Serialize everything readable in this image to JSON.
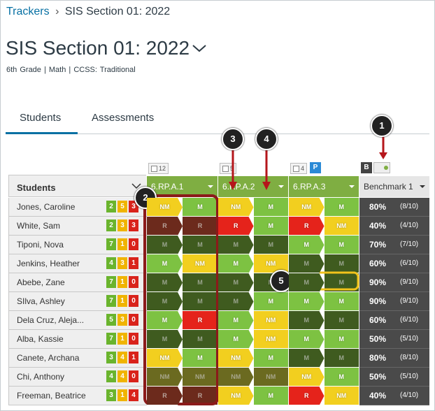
{
  "breadcrumb": [
    "Trackers",
    "SIS Section 01: 2022"
  ],
  "title": "SIS Section 01: 2022",
  "subtitle": "6th Grade | Math | CCSS: Traditional",
  "tabs": [
    "Students",
    "Assessments"
  ],
  "callouts": [
    "1",
    "2",
    "3",
    "4",
    "5"
  ],
  "table": {
    "students_header": "Students",
    "standards": [
      {
        "count": "12",
        "label": "6.RP.A.1"
      },
      {
        "count": "5",
        "label": "6.RP.A.2"
      },
      {
        "count": "4",
        "badge": "P",
        "label": "6.RP.A.3"
      }
    ],
    "benchmark": {
      "badge": "B",
      "label": "Benchmark 1"
    },
    "rows": [
      {
        "name": "Jones, Caroline",
        "counts": [
          2,
          5,
          3
        ],
        "cells": [
          [
            {
              "text": "NM",
              "shade": "bright"
            },
            {
              "text": "M",
              "shade": "bright"
            }
          ],
          [
            {
              "text": "NM",
              "shade": "bright"
            },
            {
              "text": "M",
              "shade": "bright"
            }
          ],
          [
            {
              "text": "NM",
              "shade": "bright"
            },
            {
              "text": "M",
              "shade": "bright"
            }
          ]
        ],
        "percent": "80%",
        "score": "(8/10)"
      },
      {
        "name": "White, Sam",
        "counts": [
          2,
          3,
          3
        ],
        "cells": [
          [
            {
              "text": "R",
              "shade": "dim"
            },
            {
              "text": "R",
              "shade": "dim"
            }
          ],
          [
            {
              "text": "R",
              "shade": "bright"
            },
            {
              "text": "M",
              "shade": "bright"
            }
          ],
          [
            {
              "text": "R",
              "shade": "bright"
            },
            {
              "text": "NM",
              "shade": "bright"
            }
          ]
        ],
        "percent": "40%",
        "score": "(4/10)"
      },
      {
        "name": "Tiponi, Nova",
        "counts": [
          7,
          1,
          0
        ],
        "cells": [
          [
            {
              "text": "M",
              "shade": "dim"
            },
            {
              "text": "M",
              "shade": "dim"
            }
          ],
          [
            {
              "text": "M",
              "shade": "dim"
            },
            {
              "text": "M",
              "shade": "dim"
            }
          ],
          [
            {
              "text": "M",
              "shade": "bright"
            },
            {
              "text": "M",
              "shade": "bright"
            }
          ]
        ],
        "percent": "70%",
        "score": "(7/10)"
      },
      {
        "name": "Jenkins, Heather",
        "counts": [
          4,
          3,
          1
        ],
        "cells": [
          [
            {
              "text": "M",
              "shade": "bright"
            },
            {
              "text": "NM",
              "shade": "bright"
            }
          ],
          [
            {
              "text": "M",
              "shade": "bright"
            },
            {
              "text": "NM",
              "shade": "bright"
            }
          ],
          [
            {
              "text": "M",
              "shade": "dim"
            },
            {
              "text": "M",
              "shade": "dim"
            }
          ]
        ],
        "percent": "60%",
        "score": "(6/10)"
      },
      {
        "name": "Abebe, Zane",
        "counts": [
          7,
          1,
          0
        ],
        "cells": [
          [
            {
              "text": "M",
              "shade": "dim"
            },
            {
              "text": "M",
              "shade": "dim"
            }
          ],
          [
            {
              "text": "M",
              "shade": "dim"
            },
            {
              "text": "M",
              "shade": "dim"
            }
          ],
          [
            {
              "text": "M",
              "shade": "dim"
            },
            {
              "text": "M",
              "shade": "dim"
            }
          ]
        ],
        "percent": "90%",
        "score": "(9/10)"
      },
      {
        "name": "SIlva, Ashley",
        "counts": [
          7,
          1,
          0
        ],
        "cells": [
          [
            {
              "text": "M",
              "shade": "dim"
            },
            {
              "text": "M",
              "shade": "dim"
            }
          ],
          [
            {
              "text": "M",
              "shade": "dim"
            },
            {
              "text": "M",
              "shade": "bright"
            }
          ],
          [
            {
              "text": "M",
              "shade": "bright"
            },
            {
              "text": "M",
              "shade": "bright"
            }
          ]
        ],
        "percent": "90%",
        "score": "(9/10)"
      },
      {
        "name": "Dela Cruz, Aleja...",
        "counts": [
          5,
          3,
          0
        ],
        "cells": [
          [
            {
              "text": "M",
              "shade": "bright"
            },
            {
              "text": "R",
              "shade": "bright"
            }
          ],
          [
            {
              "text": "M",
              "shade": "bright"
            },
            {
              "text": "NM",
              "shade": "bright"
            }
          ],
          [
            {
              "text": "M",
              "shade": "dim"
            },
            {
              "text": "M",
              "shade": "dim"
            }
          ]
        ],
        "percent": "60%",
        "score": "(6/10)"
      },
      {
        "name": "Alba, Kassie",
        "counts": [
          7,
          1,
          0
        ],
        "cells": [
          [
            {
              "text": "M",
              "shade": "dim"
            },
            {
              "text": "M",
              "shade": "dim"
            }
          ],
          [
            {
              "text": "M",
              "shade": "bright"
            },
            {
              "text": "NM",
              "shade": "bright"
            }
          ],
          [
            {
              "text": "M",
              "shade": "bright"
            },
            {
              "text": "M",
              "shade": "bright"
            }
          ]
        ],
        "percent": "50%",
        "score": "(5/10)"
      },
      {
        "name": "Canete, Archana",
        "counts": [
          3,
          4,
          1
        ],
        "cells": [
          [
            {
              "text": "NM",
              "shade": "bright"
            },
            {
              "text": "M",
              "shade": "bright"
            }
          ],
          [
            {
              "text": "NM",
              "shade": "bright"
            },
            {
              "text": "M",
              "shade": "bright"
            }
          ],
          [
            {
              "text": "M",
              "shade": "dim"
            },
            {
              "text": "M",
              "shade": "dim"
            }
          ]
        ],
        "percent": "80%",
        "score": "(8/10)"
      },
      {
        "name": "Chi, Anthony",
        "counts": [
          4,
          4,
          0
        ],
        "cells": [
          [
            {
              "text": "NM",
              "shade": "dim"
            },
            {
              "text": "NM",
              "shade": "dim"
            }
          ],
          [
            {
              "text": "NM",
              "shade": "dim"
            },
            {
              "text": "NM",
              "shade": "dim"
            }
          ],
          [
            {
              "text": "NM",
              "shade": "bright"
            },
            {
              "text": "M",
              "shade": "bright"
            }
          ]
        ],
        "percent": "50%",
        "score": "(5/10)"
      },
      {
        "name": "Freeman, Beatrice",
        "counts": [
          3,
          1,
          4
        ],
        "cells": [
          [
            {
              "text": "R",
              "shade": "dim"
            },
            {
              "text": "R",
              "shade": "dim"
            }
          ],
          [
            {
              "text": "NM",
              "shade": "bright"
            },
            {
              "text": "M",
              "shade": "bright"
            }
          ],
          [
            {
              "text": "R",
              "shade": "bright"
            },
            {
              "text": "NM",
              "shade": "bright"
            }
          ]
        ],
        "percent": "40%",
        "score": "(4/10)"
      }
    ]
  }
}
